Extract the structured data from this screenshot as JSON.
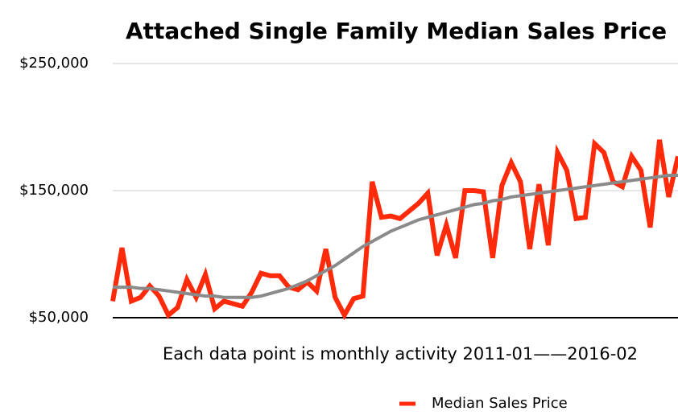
{
  "chart_data": {
    "type": "line",
    "title": "Attached Single Family Median Sales Price",
    "annotation": "Each data point is monthly activity 2011-01——2016-02",
    "categories": [
      null,
      null,
      null,
      null,
      null,
      null,
      null,
      null,
      null,
      null,
      null,
      null,
      null,
      null,
      null,
      null,
      null,
      null,
      null,
      null,
      null,
      null,
      null,
      null,
      null,
      null,
      null,
      null,
      null,
      null,
      null,
      null,
      null,
      null,
      null,
      null,
      null,
      null,
      null,
      null,
      null,
      null,
      null,
      null,
      null,
      null,
      null,
      null,
      null,
      null,
      null,
      null,
      null,
      null,
      null,
      null,
      null,
      null,
      null,
      null,
      null,
      null
    ],
    "series": [
      {
        "name": "Median Sales Price",
        "color": "#ff2a0a",
        "values": [
          63000,
          105000,
          63000,
          66000,
          75000,
          67000,
          52000,
          58000,
          80000,
          66000,
          84000,
          57000,
          63000,
          61000,
          59000,
          70000,
          85000,
          83000,
          83000,
          74000,
          72000,
          78000,
          71000,
          104000,
          66000,
          52000,
          65000,
          67000,
          157000,
          129000,
          130000,
          128000,
          134000,
          140000,
          148000,
          99000,
          123000,
          97000,
          150000,
          150000,
          149000,
          97000,
          154000,
          172000,
          157000,
          104000,
          155000,
          107000,
          180000,
          166000,
          128000,
          129000,
          187000,
          180000,
          157000,
          153000,
          177000,
          166000,
          121000,
          190000,
          145000,
          177000
        ]
      },
      {
        "color": "#8a8a8a",
        "values": [
          74000,
          74000,
          74000,
          73000,
          73000,
          72000,
          71000,
          70000,
          69000,
          68000,
          67000,
          67000,
          66000,
          66000,
          66000,
          66000,
          67000,
          69000,
          71000,
          73000,
          76000,
          79000,
          83000,
          87000,
          91000,
          96000,
          101000,
          106000,
          110000,
          114000,
          118000,
          121000,
          124000,
          127000,
          129000,
          131000,
          133000,
          135000,
          137000,
          139000,
          140000,
          142000,
          143000,
          145000,
          146000,
          147000,
          148000,
          149000,
          150000,
          151000,
          152000,
          153000,
          154000,
          155000,
          156000,
          157000,
          158000,
          159000,
          160000,
          161000,
          162000,
          162000
        ]
      }
    ],
    "ylim": [
      50000,
      250000
    ],
    "yticks": [
      {
        "value": 50000,
        "label": "$50,000"
      },
      {
        "value": 150000,
        "label": "$150,000"
      },
      {
        "value": 250000,
        "label": "$250,000"
      }
    ],
    "grid": true
  }
}
